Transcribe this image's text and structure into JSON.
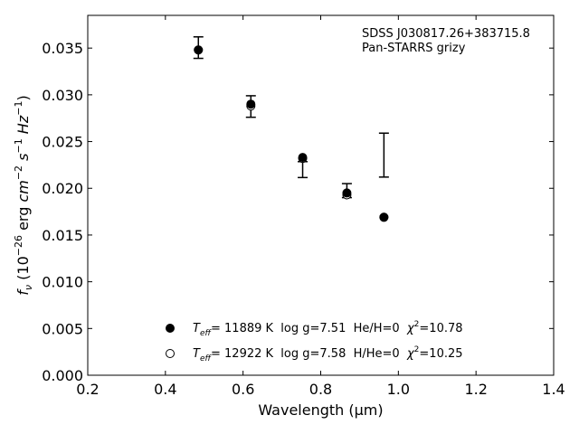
{
  "chart_data": {
    "type": "scatter",
    "xlabel": "Wavelength (μm)",
    "ylabel": "f_ν (10^-26 erg cm^-2 s^-1 Hz^-1)",
    "xlim": [
      0.2,
      1.4
    ],
    "ylim": [
      0.0,
      0.0385
    ],
    "xticks": [
      0.2,
      0.4,
      0.6,
      0.8,
      1.0,
      1.2,
      1.4
    ],
    "xtick_labels": [
      "0.2",
      "0.4",
      "0.6",
      "0.8",
      "1.0",
      "1.2",
      "1.4"
    ],
    "yticks": [
      0.0,
      0.005,
      0.01,
      0.015,
      0.02,
      0.025,
      0.03,
      0.035
    ],
    "ytick_labels": [
      "0.000",
      "0.005",
      "0.010",
      "0.015",
      "0.020",
      "0.025",
      "0.030",
      "0.035"
    ],
    "grid": false,
    "annotation": [
      "SDSS J030817.26+383715.8",
      "Pan-STARRS grizy"
    ],
    "observed": {
      "bands": [
        "g",
        "r",
        "i",
        "z",
        "y"
      ],
      "x": [
        0.4849,
        0.6201,
        0.7535,
        0.8674,
        0.9628
      ],
      "y": [
        0.03505,
        0.02875,
        0.022,
        0.01975,
        0.02355
      ],
      "yerr": [
        0.00115,
        0.00115,
        0.00085,
        0.00075,
        0.00235
      ]
    },
    "series": [
      {
        "marker": "filled-circle",
        "x": [
          0.4849,
          0.6201,
          0.7535,
          0.8674,
          0.9628
        ],
        "y": [
          0.0348,
          0.029,
          0.0233,
          0.0195,
          0.0169
        ],
        "label": {
          "teff_symbol": "T",
          "teff_sub": "eff",
          "teff_rest": "= 11889 K  log g=7.51  He/H=0  ",
          "chi_symbol": "χ",
          "chi_sup": "2",
          "chi_rest": "=10.78"
        }
      },
      {
        "marker": "open-circle",
        "x": [
          0.4849,
          0.6201,
          0.7535,
          0.8674,
          0.9628
        ],
        "y": [
          0.0348,
          0.0288,
          0.0232,
          0.0193,
          0.0169
        ],
        "label": {
          "teff_symbol": "T",
          "teff_sub": "eff",
          "teff_rest": "= 12922 K  log g=7.58  H/He=0  ",
          "chi_symbol": "χ",
          "chi_sup": "2",
          "chi_rest": "=10.25"
        }
      }
    ],
    "legend": "lower-left"
  }
}
